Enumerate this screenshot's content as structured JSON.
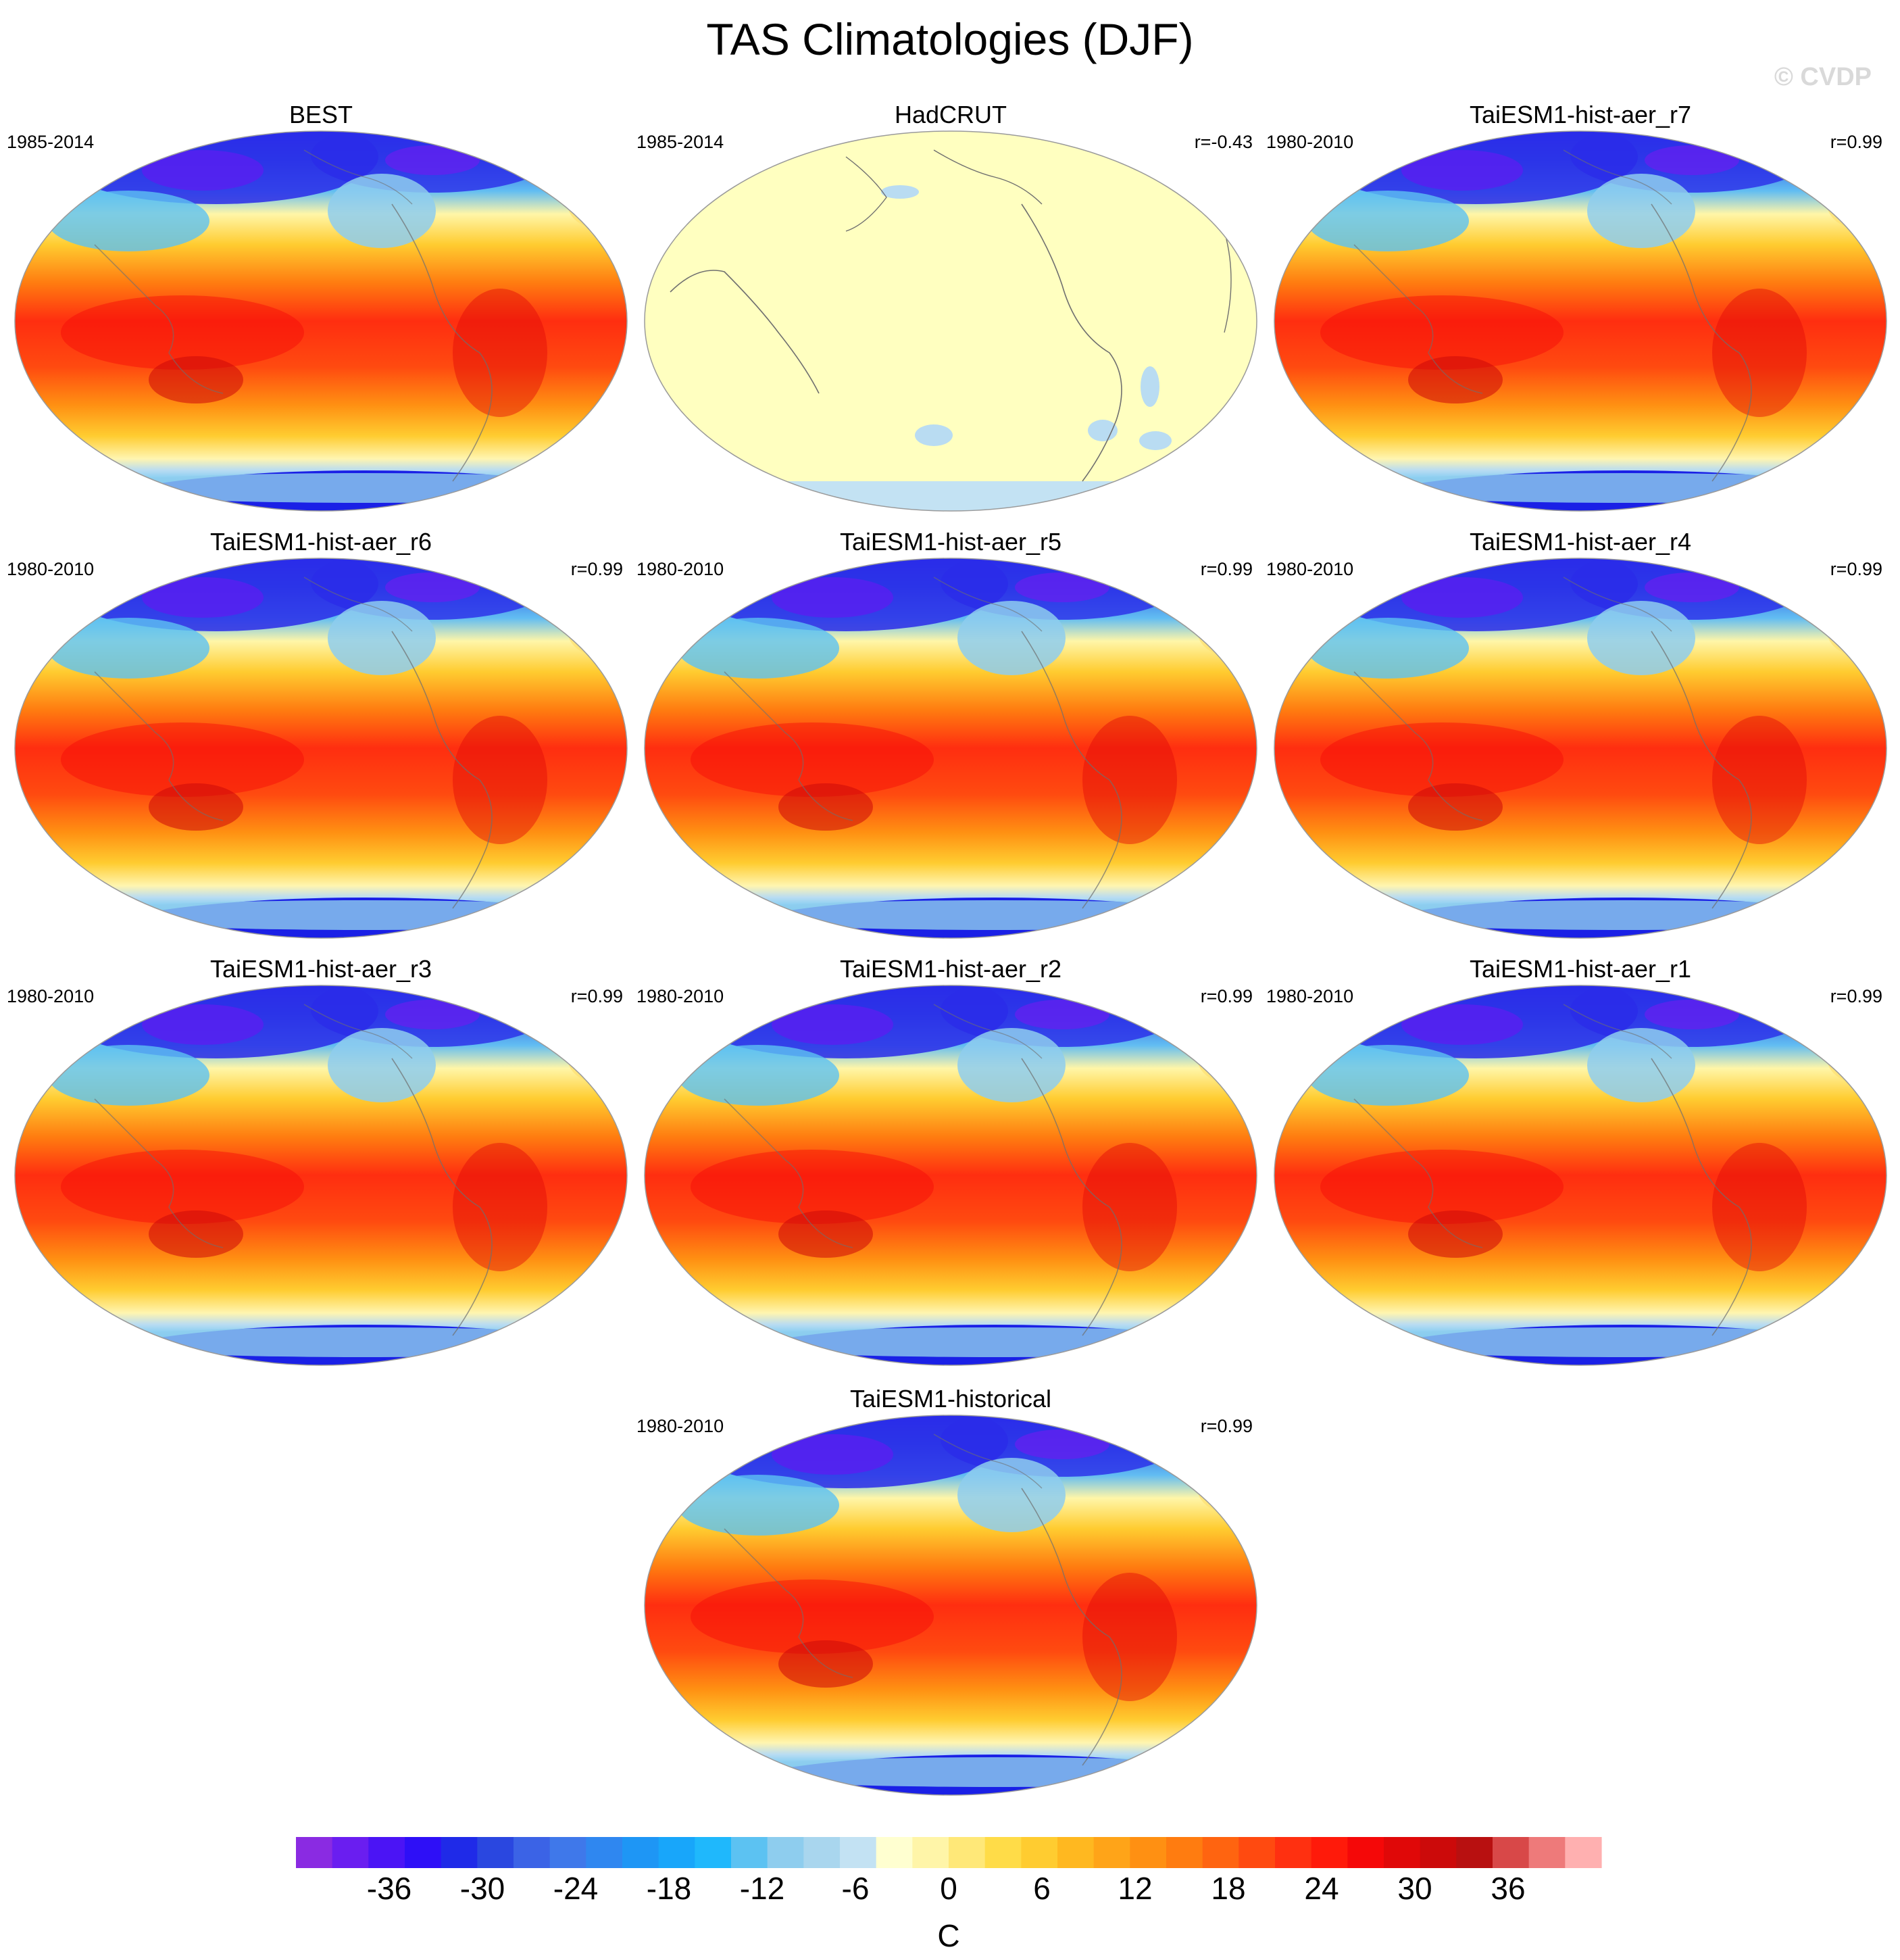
{
  "title": "TAS Climatologies (DJF)",
  "watermark": "© CVDP",
  "panels": [
    {
      "title": "BEST",
      "period": "1985-2014",
      "corr": "",
      "style": "model"
    },
    {
      "title": "HadCRUT",
      "period": "1985-2014",
      "corr": "r=-0.43",
      "style": "hadcrut"
    },
    {
      "title": "TaiESM1-hist-aer_r7",
      "period": "1980-2010",
      "corr": "r=0.99",
      "style": "model"
    },
    {
      "title": "TaiESM1-hist-aer_r6",
      "period": "1980-2010",
      "corr": "r=0.99",
      "style": "model"
    },
    {
      "title": "TaiESM1-hist-aer_r5",
      "period": "1980-2010",
      "corr": "r=0.99",
      "style": "model"
    },
    {
      "title": "TaiESM1-hist-aer_r4",
      "period": "1980-2010",
      "corr": "r=0.99",
      "style": "model"
    },
    {
      "title": "TaiESM1-hist-aer_r3",
      "period": "1980-2010",
      "corr": "r=0.99",
      "style": "model"
    },
    {
      "title": "TaiESM1-hist-aer_r2",
      "period": "1980-2010",
      "corr": "r=0.99",
      "style": "model"
    },
    {
      "title": "TaiESM1-hist-aer_r1",
      "period": "1980-2010",
      "corr": "r=0.99",
      "style": "model"
    },
    {
      "title": "TaiESM1-historical",
      "period": "1980-2010",
      "corr": "r=0.99",
      "style": "model"
    }
  ],
  "chart_data": {
    "type": "heatmap",
    "title": "TAS Climatologies (DJF)",
    "variable": "TAS",
    "season": "DJF",
    "projection": "global map",
    "colorbar": {
      "unit_label": "C",
      "min": -42,
      "max": 42,
      "step": 2,
      "tick_values": [
        -36,
        -30,
        -24,
        -18,
        -12,
        -6,
        0,
        6,
        12,
        18,
        24,
        30,
        36
      ],
      "tick_labels": [
        "-36",
        "-30",
        "-24",
        "-18",
        "-12",
        "-6",
        "0",
        "6",
        "12",
        "18",
        "24",
        "30",
        "36"
      ],
      "colors": [
        "#8a2be2",
        "#6a1ef0",
        "#4b14f5",
        "#2e0ff7",
        "#1f2ae8",
        "#2a47e0",
        "#3b63e6",
        "#3f78ea",
        "#2f87f0",
        "#1e96f5",
        "#18a6fa",
        "#1fb8fc",
        "#5cc2f2",
        "#8ecdee",
        "#a9d6ee",
        "#c3e2f3",
        "#ffffd0",
        "#fff5a8",
        "#ffe878",
        "#ffdc48",
        "#ffcc30",
        "#ffb820",
        "#ffa418",
        "#ff9012",
        "#ff7c10",
        "#ff6410",
        "#ff4a10",
        "#ff3010",
        "#ff1a0a",
        "#f50808",
        "#e00808",
        "#cc0a0a",
        "#b81010",
        "#d84848",
        "#ee7a7a",
        "#ffb0b0"
      ]
    }
  }
}
